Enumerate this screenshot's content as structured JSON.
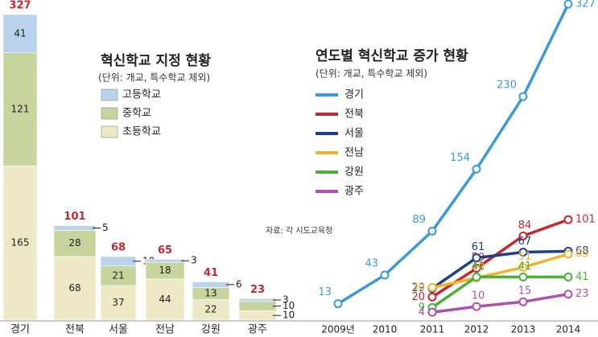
{
  "chart_data": [
    {
      "type": "stacked-bar",
      "title": "혁신학교 지정 현황",
      "subtitle": "(단위: 개교, 특수학교 제외)",
      "source": "자료: 각 시도교육청",
      "categories": [
        "경기",
        "전북",
        "서울",
        "전남",
        "강원",
        "광주"
      ],
      "series": [
        {
          "name": "고등학교",
          "color": "#b9d3ec",
          "values": [
            41,
            5,
            10,
            3,
            6,
            3
          ]
        },
        {
          "name": "중학교",
          "color": "#c6d59c",
          "values": [
            121,
            28,
            21,
            18,
            13,
            10
          ]
        },
        {
          "name": "초등학교",
          "color": "#efe8c6",
          "values": [
            165,
            68,
            37,
            44,
            22,
            10
          ]
        }
      ],
      "totals": [
        327,
        101,
        68,
        65,
        41,
        23
      ]
    },
    {
      "type": "line",
      "title": "연도별 혁신학교 증가 현황",
      "subtitle": "(단위: 개교, 특수학교 제외)",
      "categories": [
        "2009년",
        "2010",
        "2011",
        "2012",
        "2013",
        "2014"
      ],
      "series": [
        {
          "name": "경기",
          "color": "#3a9ad9",
          "values": [
            13,
            43,
            89,
            154,
            230,
            327
          ]
        },
        {
          "name": "전북",
          "color": "#c8272f",
          "values": [
            null,
            null,
            20,
            50,
            84,
            101
          ]
        },
        {
          "name": "서울",
          "color": "#1e3f8a",
          "values": [
            null,
            null,
            29,
            61,
            67,
            68
          ]
        },
        {
          "name": "전남",
          "color": "#f0b428",
          "values": [
            null,
            null,
            30,
            40,
            51,
            65
          ]
        },
        {
          "name": "강원",
          "color": "#4cae3c",
          "values": [
            null,
            null,
            9,
            41,
            41,
            41
          ]
        },
        {
          "name": "광주",
          "color": "#b04fb0",
          "values": [
            null,
            null,
            4,
            10,
            15,
            23
          ]
        }
      ]
    }
  ]
}
